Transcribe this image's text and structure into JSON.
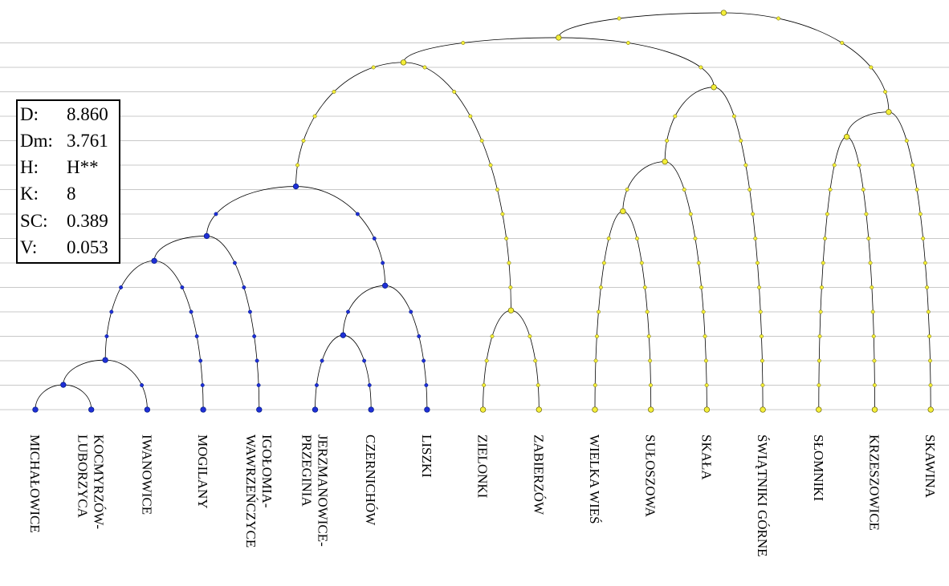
{
  "stats": [
    {
      "key": "D:",
      "value": "8.860"
    },
    {
      "key": "Dm:",
      "value": "3.761"
    },
    {
      "key": "H:",
      "value": "H**"
    },
    {
      "key": "K:",
      "value": "8"
    },
    {
      "key": "SC:",
      "value": "0.389"
    },
    {
      "key": "V:",
      "value": "0.053"
    }
  ],
  "colors": {
    "cluster_blue": "#1f2fd6",
    "cluster_yellow": "#f4ef3a",
    "grid": "#c8c8c8",
    "branch": "#000000"
  },
  "leaves": [
    {
      "id": "michalowice",
      "lines": [
        "MICHAŁOWICE"
      ],
      "cluster": "blue"
    },
    {
      "id": "kocmyrzow",
      "lines": [
        "KOCMYRZÓW-",
        "LUBORZYCA"
      ],
      "cluster": "blue"
    },
    {
      "id": "iwanowice",
      "lines": [
        "IWANOWICE"
      ],
      "cluster": "blue"
    },
    {
      "id": "mogilany",
      "lines": [
        "MOGILANY"
      ],
      "cluster": "blue"
    },
    {
      "id": "igolomia",
      "lines": [
        "IGOŁOMIA-",
        "WAWRZEŃCZYCE"
      ],
      "cluster": "blue"
    },
    {
      "id": "jerzmanowice",
      "lines": [
        "JERZMANOWICE-",
        "PRZEGINIA"
      ],
      "cluster": "blue"
    },
    {
      "id": "czernichow",
      "lines": [
        "CZERNICHÓW"
      ],
      "cluster": "blue"
    },
    {
      "id": "liszki",
      "lines": [
        "LISZKI"
      ],
      "cluster": "blue"
    },
    {
      "id": "zielonki",
      "lines": [
        "ZIELONKI"
      ],
      "cluster": "yellow"
    },
    {
      "id": "zabierzow",
      "lines": [
        "ZABIERZÓW"
      ],
      "cluster": "yellow"
    },
    {
      "id": "wielka-wies",
      "lines": [
        "WIELKA WIEŚ"
      ],
      "cluster": "yellow"
    },
    {
      "id": "suloszowa",
      "lines": [
        "SUŁOSZOWA"
      ],
      "cluster": "yellow"
    },
    {
      "id": "skala",
      "lines": [
        "SKAŁA"
      ],
      "cluster": "yellow"
    },
    {
      "id": "swiatniki",
      "lines": [
        "ŚWIĄTNIKI GÓRNE"
      ],
      "cluster": "yellow"
    },
    {
      "id": "slomniki",
      "lines": [
        "SŁOMNIKI"
      ],
      "cluster": "yellow"
    },
    {
      "id": "krzeszowice",
      "lines": [
        "KRZESZOWICE"
      ],
      "cluster": "yellow"
    },
    {
      "id": "skawina",
      "lines": [
        "SKAWINA"
      ],
      "cluster": "yellow"
    }
  ],
  "merges": [
    {
      "a": 0,
      "b": 1,
      "level": 1,
      "cluster": "blue"
    },
    {
      "a": 5,
      "b": 6,
      "level": 3,
      "cluster": "blue"
    },
    {
      "a": 8,
      "b": 9,
      "level": 4,
      "cluster": "yellow"
    },
    {
      "a": 17,
      "b": 2,
      "level": 2,
      "cluster": "blue"
    },
    {
      "a": 10,
      "b": 11,
      "level": 8,
      "cluster": "yellow"
    },
    {
      "a": 18,
      "b": 7,
      "level": 5,
      "cluster": "blue"
    },
    {
      "a": 14,
      "b": 15,
      "level": 11,
      "cluster": "yellow"
    },
    {
      "a": 20,
      "b": 3,
      "level": 6,
      "cluster": "blue"
    },
    {
      "a": 24,
      "b": 4,
      "level": 7,
      "cluster": "blue"
    },
    {
      "a": 21,
      "b": 12,
      "level": 10,
      "cluster": "yellow"
    },
    {
      "a": 25,
      "b": 22,
      "level": 9,
      "cluster": "blue"
    },
    {
      "a": 26,
      "b": 13,
      "level": 13,
      "cluster": "yellow"
    },
    {
      "a": 23,
      "b": 16,
      "level": 12,
      "cluster": "yellow"
    },
    {
      "a": 27,
      "b": 19,
      "level": 14,
      "cluster": "yellow"
    },
    {
      "a": 28,
      "b": 30,
      "level": 15,
      "cluster": "yellow"
    },
    {
      "a": 31,
      "b": 29,
      "level": 16,
      "cluster": "yellow"
    }
  ]
}
